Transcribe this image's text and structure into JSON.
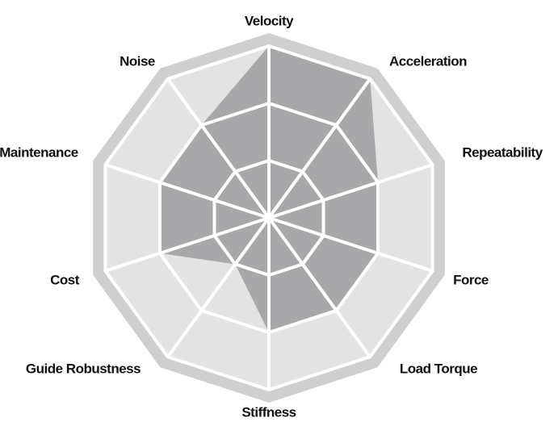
{
  "chart_data": {
    "type": "radar",
    "categories": [
      "Velocity",
      "Acceleration",
      "Repeatability",
      "Force",
      "Load Torque",
      "Stiffness",
      "Guide Robustness",
      "Cost",
      "Maintenance",
      "Noise"
    ],
    "values": [
      3,
      3,
      2,
      2,
      2,
      2,
      1,
      2,
      2,
      2
    ],
    "color": "#a8a8aa",
    "rlim": [
      0,
      3
    ],
    "rticks": [
      1,
      2,
      3
    ],
    "grid": true
  }
}
